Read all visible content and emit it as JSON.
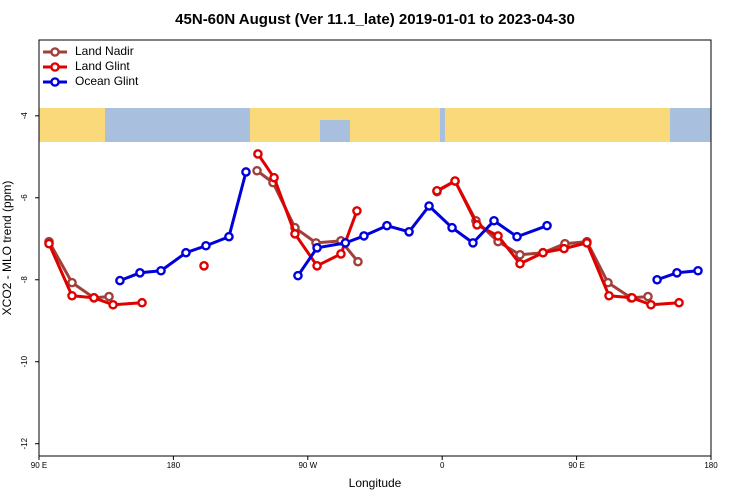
{
  "chart_data": {
    "type": "line",
    "title": "45N-60N August (Ver 11.1_late)   2019-01-01 to 2023-04-30",
    "x_label": "Longitude",
    "y_label": "XCO2 - MLO trend (ppm)",
    "xlim": [
      90,
      540
    ],
    "ylim": [
      -12.3,
      -2.15
    ],
    "xticks": [
      {
        "value": 90,
        "label": "90 E"
      },
      180,
      {
        "value": 270,
        "label": "90 W"
      },
      {
        "value": 360,
        "label": "0"
      },
      {
        "value": 450,
        "label": "90 E"
      },
      {
        "value": 540,
        "label": "180"
      }
    ],
    "yticks": [
      -4,
      -6,
      -8,
      -10,
      -12
    ],
    "legend": "top-left",
    "series": [
      {
        "name": "Land Nadir",
        "color": "#a0403a",
        "x": [
          96.7,
          112.1,
          126.8,
          136.9,
          null,
          236.0,
          246.7,
          261.4,
          275.5,
          292.2,
          303.6,
          null,
          356.5,
          368.6,
          382.6,
          397.4,
          412.1,
          427.5,
          442.2,
          456.9,
          471.0,
          486.4,
          497.8
        ],
        "values": [
          -7.07,
          -8.07,
          -8.44,
          -8.41,
          null,
          -5.34,
          -5.63,
          -6.73,
          -7.1,
          -7.05,
          -7.56,
          null,
          -5.85,
          -5.59,
          -6.56,
          -7.07,
          -7.39,
          -7.34,
          -7.12,
          -7.07,
          -8.07,
          -8.44,
          -8.41
        ]
      },
      {
        "name": "Land Glint",
        "color": "#e00000",
        "x": [
          96.7,
          112.1,
          126.8,
          139.6,
          159.0,
          null,
          200.5,
          null,
          236.6,
          247.4,
          261.4,
          276.2,
          292.2,
          302.9,
          null,
          356.5,
          368.6,
          383.3,
          397.4,
          412.1,
          427.5,
          441.6,
          456.9,
          471.7,
          487.1,
          499.8,
          518.6
        ],
        "values": [
          -7.12,
          -8.39,
          -8.44,
          -8.61,
          -8.56,
          null,
          -7.66,
          null,
          -4.93,
          -5.51,
          -6.88,
          -7.66,
          -7.37,
          -6.32,
          null,
          -5.83,
          -5.59,
          -6.66,
          -6.93,
          -7.61,
          -7.34,
          -7.24,
          -7.1,
          -8.39,
          -8.44,
          -8.61,
          -8.56
        ]
      },
      {
        "name": "Ocean Glint",
        "color": "#0000dd",
        "x": [
          144.2,
          157.6,
          171.7,
          188.4,
          201.8,
          217.2,
          228.6,
          null,
          263.4,
          276.2,
          295.2,
          307.6,
          323.0,
          337.8,
          351.2,
          366.6,
          380.6,
          394.7,
          410.1,
          430.2,
          null,
          503.9,
          517.2,
          531.3
        ],
        "values": [
          -8.02,
          -7.83,
          -7.78,
          -7.34,
          -7.17,
          -6.95,
          -5.37,
          null,
          -7.9,
          -7.22,
          -7.1,
          -6.93,
          -6.68,
          -6.83,
          -6.2,
          -6.73,
          -7.1,
          -6.56,
          -6.95,
          -6.68,
          null,
          -8.0,
          -7.83,
          -7.78
        ]
      }
    ]
  }
}
